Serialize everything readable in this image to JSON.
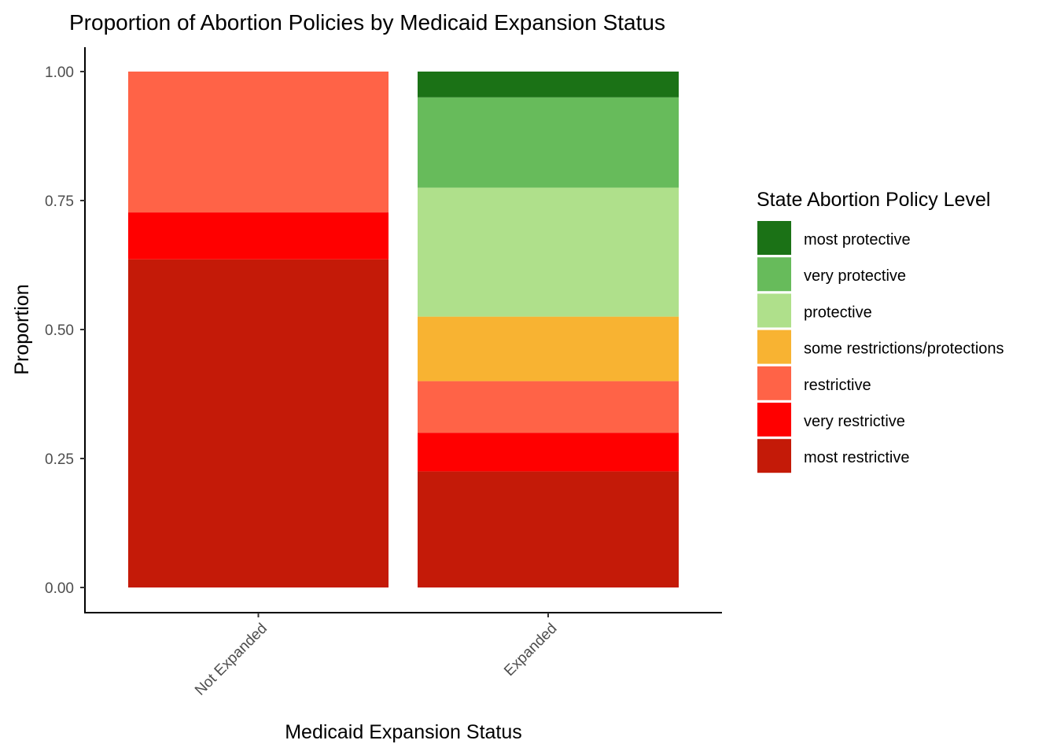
{
  "chart_data": {
    "type": "bar",
    "stacked": true,
    "title": "Proportion of Abortion Policies by Medicaid Expansion Status",
    "xlabel": "Medicaid Expansion Status",
    "ylabel": "Proportion",
    "ylim": [
      0,
      1
    ],
    "yticks": [
      "0.00",
      "0.25",
      "0.50",
      "0.75",
      "1.00"
    ],
    "categories": [
      "Not Expanded",
      "Expanded"
    ],
    "grid": false,
    "legend_title": "State Abortion Policy Level",
    "legend_position": "right",
    "series": [
      {
        "name": "most protective",
        "color": "#1b7216",
        "values": [
          0,
          0.05
        ]
      },
      {
        "name": "very protective",
        "color": "#67bb5b",
        "values": [
          0,
          0.175
        ]
      },
      {
        "name": "protective",
        "color": "#afe08b",
        "values": [
          0,
          0.25
        ]
      },
      {
        "name": "some restrictions/protections",
        "color": "#f8b332",
        "values": [
          0,
          0.125
        ]
      },
      {
        "name": "restrictive",
        "color": "#ff6347",
        "values": [
          0.273,
          0.1
        ]
      },
      {
        "name": "very restrictive",
        "color": "#ff0000",
        "values": [
          0.091,
          0.075
        ]
      },
      {
        "name": "most restrictive",
        "color": "#c41a08",
        "values": [
          0.636,
          0.225
        ]
      }
    ]
  }
}
